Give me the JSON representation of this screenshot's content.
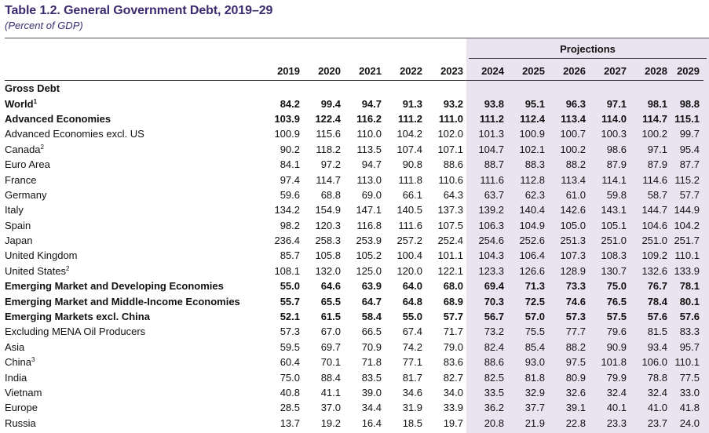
{
  "title": "Table 1.2. General Government Debt, 2019–29",
  "subtitle": "(Percent of GDP)",
  "projections_label": "Projections",
  "years": [
    "2019",
    "2020",
    "2021",
    "2022",
    "2023",
    "2024",
    "2025",
    "2026",
    "2027",
    "2028",
    "2029"
  ],
  "rows": [
    {
      "label": "Gross Debt",
      "sup": "",
      "bold": true,
      "indent": 0,
      "values": [
        "",
        "",
        "",
        "",
        "",
        "",
        "",
        "",
        "",
        "",
        ""
      ]
    },
    {
      "label": "World",
      "sup": "1",
      "bold": true,
      "indent": 0,
      "values": [
        "84.2",
        "99.4",
        "94.7",
        "91.3",
        "93.2",
        "93.8",
        "95.1",
        "96.3",
        "97.1",
        "98.1",
        "98.8"
      ]
    },
    {
      "label": "Advanced Economies",
      "sup": "",
      "bold": true,
      "indent": 0,
      "values": [
        "103.9",
        "122.4",
        "116.2",
        "111.2",
        "111.0",
        "111.2",
        "112.4",
        "113.4",
        "114.0",
        "114.7",
        "115.1"
      ]
    },
    {
      "label": "Advanced Economies excl. US",
      "sup": "",
      "bold": false,
      "indent": 0,
      "values": [
        "100.9",
        "115.6",
        "110.0",
        "104.2",
        "102.0",
        "101.3",
        "100.9",
        "100.7",
        "100.3",
        "100.2",
        "99.7"
      ]
    },
    {
      "label": "Canada",
      "sup": "2",
      "bold": false,
      "indent": 0,
      "values": [
        "90.2",
        "118.2",
        "113.5",
        "107.4",
        "107.1",
        "104.7",
        "102.1",
        "100.2",
        "98.6",
        "97.1",
        "95.4"
      ]
    },
    {
      "label": "Euro Area",
      "sup": "",
      "bold": false,
      "indent": 0,
      "values": [
        "84.1",
        "97.2",
        "94.7",
        "90.8",
        "88.6",
        "88.7",
        "88.3",
        "88.2",
        "87.9",
        "87.9",
        "87.7"
      ]
    },
    {
      "label": "France",
      "sup": "",
      "bold": false,
      "indent": 1,
      "values": [
        "97.4",
        "114.7",
        "113.0",
        "111.8",
        "110.6",
        "111.6",
        "112.8",
        "113.4",
        "114.1",
        "114.6",
        "115.2"
      ]
    },
    {
      "label": "Germany",
      "sup": "",
      "bold": false,
      "indent": 1,
      "values": [
        "59.6",
        "68.8",
        "69.0",
        "66.1",
        "64.3",
        "63.7",
        "62.3",
        "61.0",
        "59.8",
        "58.7",
        "57.7"
      ]
    },
    {
      "label": "Italy",
      "sup": "",
      "bold": false,
      "indent": 1,
      "values": [
        "134.2",
        "154.9",
        "147.1",
        "140.5",
        "137.3",
        "139.2",
        "140.4",
        "142.6",
        "143.1",
        "144.7",
        "144.9"
      ]
    },
    {
      "label": "Spain",
      "sup": "",
      "bold": false,
      "indent": 1,
      "values": [
        "98.2",
        "120.3",
        "116.8",
        "111.6",
        "107.5",
        "106.3",
        "104.9",
        "105.0",
        "105.1",
        "104.6",
        "104.2"
      ]
    },
    {
      "label": "Japan",
      "sup": "",
      "bold": false,
      "indent": 0,
      "values": [
        "236.4",
        "258.3",
        "253.9",
        "257.2",
        "252.4",
        "254.6",
        "252.6",
        "251.3",
        "251.0",
        "251.0",
        "251.7"
      ]
    },
    {
      "label": "United Kingdom",
      "sup": "",
      "bold": false,
      "indent": 0,
      "values": [
        "85.7",
        "105.8",
        "105.2",
        "100.4",
        "101.1",
        "104.3",
        "106.4",
        "107.3",
        "108.3",
        "109.2",
        "110.1"
      ]
    },
    {
      "label": "United States",
      "sup": "2",
      "bold": false,
      "indent": 0,
      "values": [
        "108.1",
        "132.0",
        "125.0",
        "120.0",
        "122.1",
        "123.3",
        "126.6",
        "128.9",
        "130.7",
        "132.6",
        "133.9"
      ]
    },
    {
      "label": "Emerging Market and Developing Economies",
      "sup": "",
      "bold": true,
      "indent": 0,
      "values": [
        "55.0",
        "64.6",
        "63.9",
        "64.0",
        "68.0",
        "69.4",
        "71.3",
        "73.3",
        "75.0",
        "76.7",
        "78.1"
      ]
    },
    {
      "label": "Emerging Market and Middle-Income Economies",
      "sup": "",
      "bold": true,
      "indent": 0,
      "values": [
        "55.7",
        "65.5",
        "64.7",
        "64.8",
        "68.9",
        "70.3",
        "72.5",
        "74.6",
        "76.5",
        "78.4",
        "80.1"
      ]
    },
    {
      "label": "Emerging Markets excl. China",
      "sup": "",
      "bold": true,
      "indent": 1,
      "values": [
        "52.1",
        "61.5",
        "58.4",
        "55.0",
        "57.7",
        "56.7",
        "57.0",
        "57.3",
        "57.5",
        "57.6",
        "57.6"
      ]
    },
    {
      "label": "Excluding MENA Oil Producers",
      "sup": "",
      "bold": false,
      "indent": 1,
      "values": [
        "57.3",
        "67.0",
        "66.5",
        "67.4",
        "71.7",
        "73.2",
        "75.5",
        "77.7",
        "79.6",
        "81.5",
        "83.3"
      ]
    },
    {
      "label": "Asia",
      "sup": "",
      "bold": false,
      "indent": 1,
      "values": [
        "59.5",
        "69.7",
        "70.9",
        "74.2",
        "79.0",
        "82.4",
        "85.4",
        "88.2",
        "90.9",
        "93.4",
        "95.7"
      ]
    },
    {
      "label": "China",
      "sup": "3",
      "bold": false,
      "indent": 2,
      "values": [
        "60.4",
        "70.1",
        "71.8",
        "77.1",
        "83.6",
        "88.6",
        "93.0",
        "97.5",
        "101.8",
        "106.0",
        "110.1"
      ]
    },
    {
      "label": "India",
      "sup": "",
      "bold": false,
      "indent": 2,
      "values": [
        "75.0",
        "88.4",
        "83.5",
        "81.7",
        "82.7",
        "82.5",
        "81.8",
        "80.9",
        "79.9",
        "78.8",
        "77.5"
      ]
    },
    {
      "label": "Vietnam",
      "sup": "",
      "bold": false,
      "indent": 2,
      "values": [
        "40.8",
        "41.1",
        "39.0",
        "34.6",
        "34.0",
        "33.5",
        "32.9",
        "32.6",
        "32.4",
        "32.4",
        "33.0"
      ]
    },
    {
      "label": "Europe",
      "sup": "",
      "bold": false,
      "indent": 1,
      "values": [
        "28.5",
        "37.0",
        "34.4",
        "31.9",
        "33.9",
        "36.2",
        "37.7",
        "39.1",
        "40.1",
        "41.0",
        "41.8"
      ]
    },
    {
      "label": "Russia",
      "sup": "",
      "bold": false,
      "indent": 2,
      "values": [
        "13.7",
        "19.2",
        "16.4",
        "18.5",
        "19.7",
        "20.8",
        "21.9",
        "22.8",
        "23.3",
        "23.7",
        "24.0"
      ]
    }
  ]
}
